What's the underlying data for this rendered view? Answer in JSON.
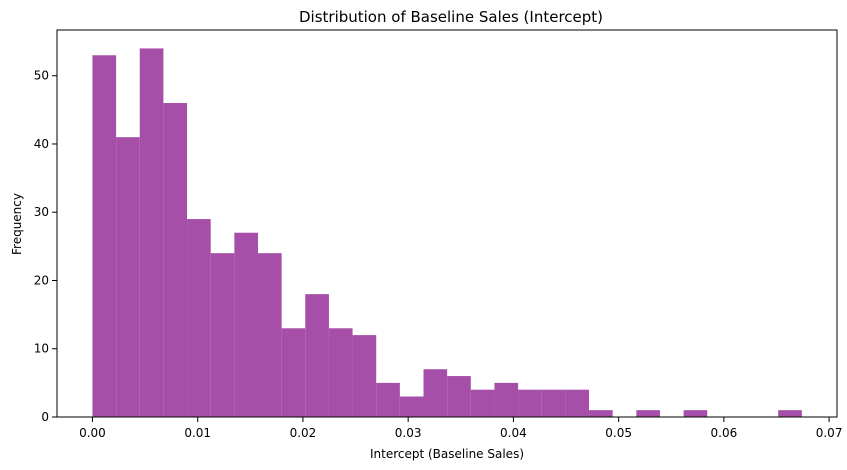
{
  "chart_data": {
    "type": "bar",
    "title": "Distribution of Baseline Sales (Intercept)",
    "xlabel": "Intercept (Baseline Sales)",
    "ylabel": "Frequency",
    "xlim": [
      -0.00337,
      0.07075
    ],
    "ylim": [
      0,
      56.7
    ],
    "x_ticks": [
      0.0,
      0.01,
      0.02,
      0.03,
      0.04,
      0.05,
      0.06,
      0.07
    ],
    "x_tick_labels": [
      "0.00",
      "0.01",
      "0.02",
      "0.03",
      "0.04",
      "0.05",
      "0.06",
      "0.07"
    ],
    "y_ticks": [
      0,
      10,
      20,
      30,
      40,
      50
    ],
    "y_tick_labels": [
      "0",
      "10",
      "20",
      "30",
      "40",
      "50"
    ],
    "bins": {
      "start": 0.0,
      "width": 0.002247,
      "count": 30
    },
    "values": [
      53,
      41,
      54,
      46,
      29,
      24,
      27,
      24,
      13,
      18,
      13,
      12,
      5,
      3,
      7,
      6,
      4,
      5,
      4,
      4,
      4,
      1,
      0,
      1,
      0,
      1,
      0,
      0,
      0,
      1
    ],
    "bar_color": "#a64fa8",
    "grid": false,
    "legend": "none"
  }
}
